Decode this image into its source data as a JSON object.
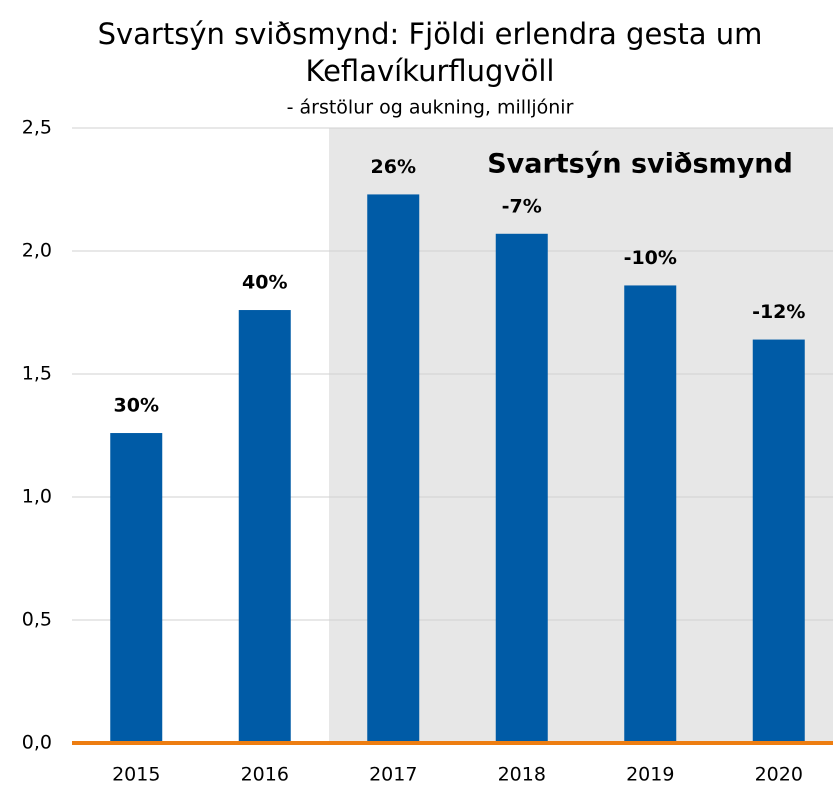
{
  "chart_data": {
    "type": "bar",
    "title": [
      "Svartsýn sviðsmynd: Fjöldi erlendra gesta um",
      "Keflavíkurflugvöll"
    ],
    "subtitle": "- árstölur og aukning, milljónir",
    "categories": [
      "2015",
      "2016",
      "2017",
      "2018",
      "2019",
      "2020"
    ],
    "values": [
      1.26,
      1.76,
      2.23,
      2.07,
      1.86,
      1.64
    ],
    "annotations": [
      "30%",
      "40%",
      "26%",
      "-7%",
      "-10%",
      "-12%"
    ],
    "color": "#005ba6",
    "baseline_color": "#ed7d11",
    "shaded": {
      "label": "Svartsýn sviðsmynd",
      "start_category": "2017",
      "color": "#e7e7e7"
    },
    "ylim": [
      0,
      2.5
    ],
    "yticks": [
      {
        "value": 0,
        "label": "0,0"
      },
      {
        "value": 0.5,
        "label": "0,5"
      },
      {
        "value": 1,
        "label": "1,0"
      },
      {
        "value": 1.5,
        "label": "1,5"
      },
      {
        "value": 2,
        "label": "2,0"
      },
      {
        "value": 2.5,
        "label": "2,5"
      }
    ],
    "grid": true
  }
}
